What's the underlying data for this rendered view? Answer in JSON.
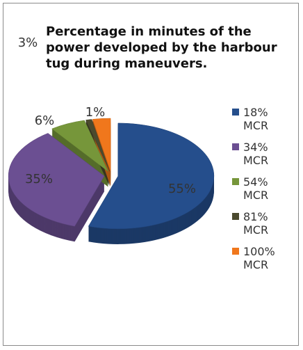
{
  "chart_data": {
    "type": "pie",
    "title": "Percentage in minutes of the power developed by the harbour tug during maneuvers.",
    "categories": [
      "18% MCR",
      "34% MCR",
      "54% MCR",
      "81% MCR",
      "100% MCR"
    ],
    "values": [
      55,
      35,
      6,
      1,
      3
    ],
    "value_labels": [
      "55%",
      "35%",
      "6%",
      "1%",
      "3%"
    ],
    "colors": [
      "#254e8c",
      "#6b4f92",
      "#76963a",
      "#4b4a2e",
      "#f0771c"
    ],
    "legend": "right"
  }
}
